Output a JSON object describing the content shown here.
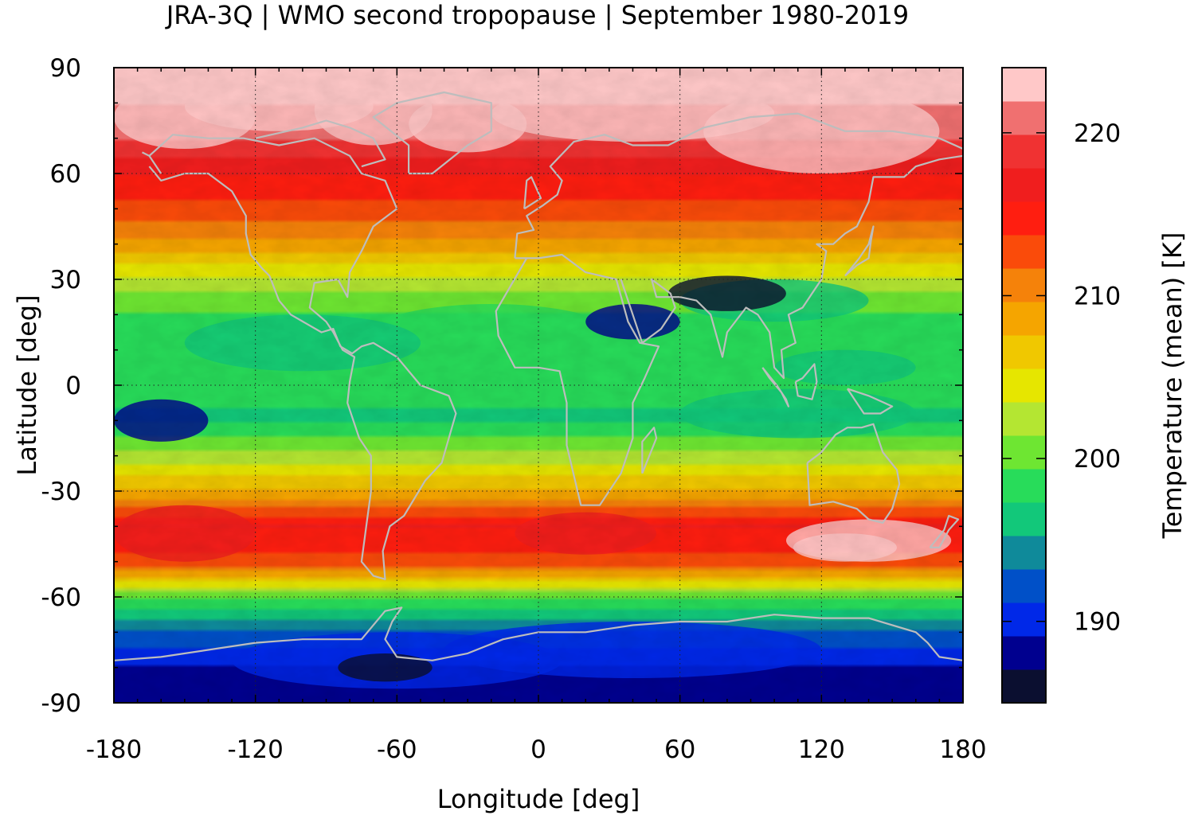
{
  "title": "JRA-3Q | WMO second tropopause | September 1980-2019",
  "x_axis": {
    "label": "Longitude [deg]",
    "ticks": [
      "-180",
      "-120",
      "-60",
      "0",
      "60",
      "120",
      "180"
    ],
    "range": [
      -180,
      180
    ]
  },
  "y_axis": {
    "label": "Latitude [deg]",
    "ticks": [
      "90",
      "60",
      "30",
      "0",
      "-30",
      "-60",
      "-90"
    ],
    "range": [
      -90,
      90
    ]
  },
  "colorbar": {
    "label": "Temperature (mean) [K]",
    "tick_labels": [
      "190",
      "200",
      "210",
      "220"
    ],
    "tick_values": [
      190,
      200,
      210,
      220
    ],
    "range": [
      185,
      224
    ],
    "colors": [
      "#0b0f30",
      "#00008f",
      "#0028e8",
      "#0050c8",
      "#0f8a9a",
      "#12c87a",
      "#28dc5a",
      "#6ee632",
      "#b4e632",
      "#e6e600",
      "#f0c800",
      "#f5a500",
      "#f5820a",
      "#fa4b0a",
      "#ff1e10",
      "#f01e1e",
      "#f03232",
      "#f07070",
      "#ffc8c8"
    ]
  },
  "chart_data": {
    "type": "heatmap",
    "title": "JRA-3Q | WMO second tropopause | September 1980-2019",
    "xlabel": "Longitude [deg]",
    "ylabel": "Latitude [deg]",
    "xlim": [
      -180,
      180
    ],
    "ylim": [
      -90,
      90
    ],
    "colorbar_label": "Temperature (mean) [K]",
    "zonal_mean_profile": {
      "latitude": [
        90,
        80,
        70,
        60,
        50,
        40,
        30,
        20,
        10,
        0,
        -10,
        -20,
        -30,
        -40,
        -50,
        -60,
        -70,
        -80,
        -90
      ],
      "temperature_K": [
        223,
        222,
        220,
        216,
        213,
        209,
        203,
        199,
        198,
        198,
        197,
        202,
        208,
        216,
        213,
        200,
        193,
        189,
        188
      ]
    },
    "grid": true,
    "coastlines": true
  }
}
